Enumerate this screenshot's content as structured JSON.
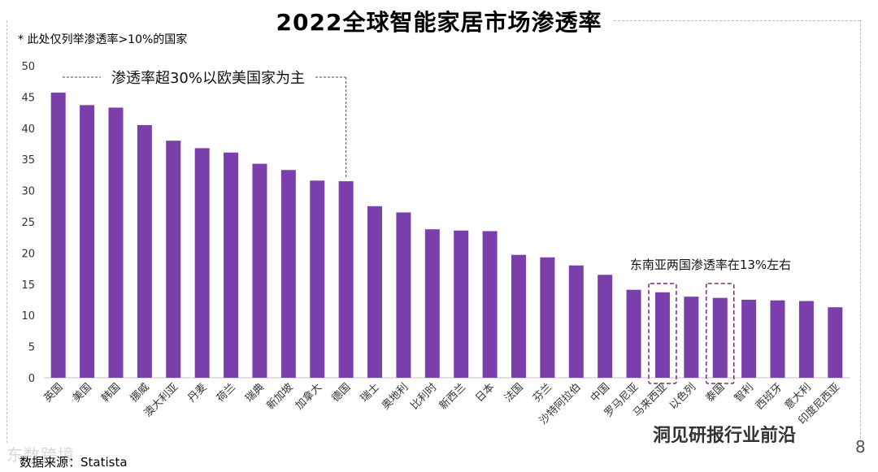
{
  "title": "2022全球智能家居市场渗透率",
  "note": "* 此处仅列举渗透率>10%的国家",
  "source": "数据来源：Statista",
  "page_number": "8",
  "watermark_left": "东数跨境",
  "watermark_right": "洞见研报行业前沿",
  "annotations": {
    "europe": "渗透率超30%以欧美国家为主",
    "sea": "东南亚两国渗透率在13%左右"
  },
  "colors": {
    "bar": "#7B3FAB",
    "dash": "#7B2D6B"
  },
  "chart_data": {
    "type": "bar",
    "title": "2022全球智能家居市场渗透率",
    "ylim": [
      0,
      50
    ],
    "yticks": [
      0,
      5,
      10,
      15,
      20,
      25,
      30,
      35,
      40,
      45,
      50
    ],
    "grid": false,
    "categories": [
      "英国",
      "美国",
      "韩国",
      "挪威",
      "澳大利亚",
      "丹麦",
      "荷兰",
      "瑞典",
      "新加坡",
      "加拿大",
      "德国",
      "瑞士",
      "奥地利",
      "比利时",
      "新西兰",
      "日本",
      "法国",
      "芬兰",
      "沙特阿拉伯",
      "中国",
      "罗马尼亚",
      "马来西亚",
      "以色列",
      "泰国",
      "智利",
      "西班牙",
      "意大利",
      "印度尼西亚"
    ],
    "values": [
      45.7,
      43.7,
      43.3,
      40.5,
      38.0,
      36.8,
      36.1,
      34.3,
      33.3,
      31.6,
      31.5,
      27.5,
      26.5,
      23.8,
      23.6,
      23.5,
      19.7,
      19.3,
      18.0,
      16.5,
      14.1,
      13.7,
      13.0,
      12.8,
      12.5,
      12.4,
      12.3,
      11.3
    ]
  }
}
